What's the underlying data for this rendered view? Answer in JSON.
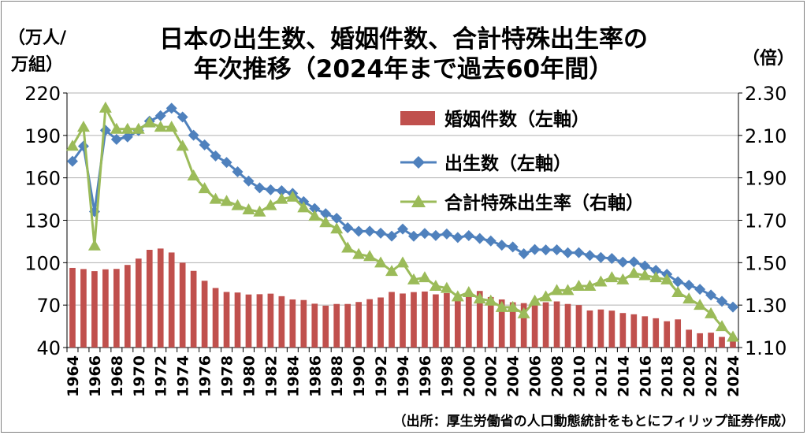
{
  "title_line1": "日本の出生数、婚姻件数、合計特殊出生率の",
  "title_line2": "年次推移（2024年まで過去60年間）",
  "left_unit_line1": "（万人/",
  "left_unit_line2": "万組）",
  "right_unit": "（倍）",
  "source": "（出所：厚生労働省の人口動態統計をもとにフィリップ証券作成）",
  "colors": {
    "marriages": "#c0504d",
    "births": "#4f81bd",
    "tfr": "#9bbb59"
  },
  "chart_data": {
    "type": "bar+line",
    "x": [
      1964,
      1965,
      1966,
      1967,
      1968,
      1969,
      1970,
      1971,
      1972,
      1973,
      1974,
      1975,
      1976,
      1977,
      1978,
      1979,
      1980,
      1981,
      1982,
      1983,
      1984,
      1985,
      1986,
      1987,
      1988,
      1989,
      1990,
      1991,
      1992,
      1993,
      1994,
      1995,
      1996,
      1997,
      1998,
      1999,
      2000,
      2001,
      2002,
      2003,
      2004,
      2005,
      2006,
      2007,
      2008,
      2009,
      2010,
      2011,
      2012,
      2013,
      2014,
      2015,
      2016,
      2017,
      2018,
      2019,
      2020,
      2021,
      2022,
      2023,
      2024
    ],
    "x_tick_labels": [
      "1964",
      "1966",
      "1968",
      "1970",
      "1972",
      "1974",
      "1976",
      "1978",
      "1980",
      "1982",
      "1984",
      "1986",
      "1988",
      "1990",
      "1992",
      "1994",
      "1996",
      "1998",
      "2000",
      "2002",
      "2004",
      "2006",
      "2008",
      "2010",
      "2012",
      "2014",
      "2016",
      "2018",
      "2020",
      "2022",
      "2024"
    ],
    "left_axis": {
      "ylim": [
        40,
        220
      ],
      "ticks": [
        "40",
        "70",
        "100",
        "130",
        "160",
        "190",
        "220"
      ]
    },
    "right_axis": {
      "ylim": [
        1.1,
        2.3
      ],
      "ticks": [
        "1.10",
        "1.30",
        "1.50",
        "1.70",
        "1.90",
        "2.10",
        "2.30"
      ]
    },
    "series": [
      {
        "name": "婚姻件数（左軸）",
        "type": "bar",
        "axis": "left",
        "values": [
          96.3,
          95.5,
          94.0,
          95.3,
          95.6,
          98.4,
          102.9,
          109.1,
          110.0,
          107.2,
          100.0,
          94.2,
          87.2,
          82.1,
          79.3,
          78.9,
          77.5,
          77.7,
          78.1,
          76.3,
          74.0,
          73.6,
          71.0,
          69.6,
          70.8,
          70.8,
          72.2,
          74.2,
          75.4,
          79.3,
          78.2,
          79.2,
          79.6,
          77.6,
          78.5,
          76.2,
          79.8,
          80.0,
          75.7,
          74.0,
          72.0,
          71.4,
          73.1,
          72.0,
          72.6,
          70.8,
          70.0,
          66.2,
          66.9,
          66.1,
          64.4,
          63.5,
          62.1,
          60.7,
          58.6,
          59.9,
          52.6,
          50.1,
          50.5,
          47.5,
          48.5
        ]
      },
      {
        "name": "出生数（左軸）",
        "type": "line",
        "axis": "left",
        "values": [
          171.7,
          182.4,
          136.1,
          193.6,
          187.2,
          188.9,
          193.4,
          200.1,
          203.9,
          209.2,
          203.0,
          190.1,
          183.3,
          175.5,
          170.9,
          164.3,
          157.7,
          152.9,
          151.5,
          150.9,
          149.0,
          143.2,
          138.3,
          134.7,
          131.4,
          124.7,
          122.2,
          122.3,
          120.9,
          118.8,
          123.8,
          118.7,
          120.7,
          119.2,
          120.3,
          117.8,
          119.1,
          117.1,
          115.4,
          112.4,
          111.1,
          106.3,
          109.3,
          109.0,
          109.1,
          107.0,
          107.1,
          105.1,
          103.7,
          103.0,
          100.4,
          100.6,
          97.7,
          94.6,
          91.8,
          86.5,
          84.1,
          81.2,
          77.1,
          72.7,
          68.6
        ]
      },
      {
        "name": "合計特殊出生率（右軸）",
        "type": "line",
        "axis": "right",
        "values": [
          2.05,
          2.14,
          1.58,
          2.23,
          2.13,
          2.13,
          2.13,
          2.16,
          2.14,
          2.14,
          2.05,
          1.91,
          1.85,
          1.8,
          1.79,
          1.77,
          1.75,
          1.74,
          1.77,
          1.8,
          1.81,
          1.76,
          1.72,
          1.69,
          1.66,
          1.57,
          1.54,
          1.53,
          1.5,
          1.46,
          1.5,
          1.42,
          1.43,
          1.39,
          1.38,
          1.34,
          1.36,
          1.33,
          1.32,
          1.29,
          1.29,
          1.26,
          1.32,
          1.34,
          1.37,
          1.37,
          1.39,
          1.39,
          1.41,
          1.43,
          1.42,
          1.45,
          1.44,
          1.43,
          1.42,
          1.36,
          1.33,
          1.3,
          1.26,
          1.2,
          1.15
        ]
      }
    ],
    "legend_placement": "upper-right, inside plot",
    "grid": "horizontal"
  }
}
